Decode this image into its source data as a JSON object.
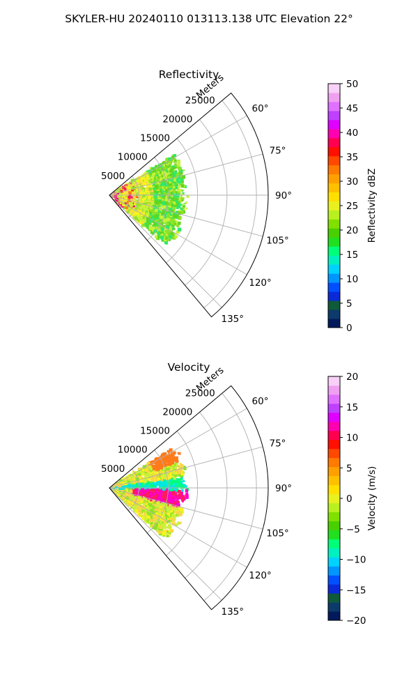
{
  "figure": {
    "suptitle": "SKYLER-HU  20240110  013113.138 UTC Elevation 22°"
  },
  "chart_data": [
    {
      "type": "heatmap",
      "projection": "polar-sector",
      "title": "Reflectivity",
      "radial_label": "Meters",
      "radial_ticks": [
        5000,
        10000,
        15000,
        20000,
        25000
      ],
      "radial_tick_labels": [
        "5000",
        "10000",
        "15000",
        "20000",
        "25000"
      ],
      "r_max": 27000,
      "azimuth_range": [
        50,
        140
      ],
      "angle_ticks": [
        60,
        75,
        90,
        105,
        120,
        135
      ],
      "angle_tick_labels": [
        "60°",
        "75°",
        "90°",
        "105°",
        "120°",
        "135°"
      ],
      "grid": true,
      "data_extent_m": 13500,
      "colorbar": {
        "label": "Reflectivity dBZ",
        "range": [
          0,
          50
        ],
        "ticks": [
          0,
          5,
          10,
          15,
          20,
          25,
          30,
          35,
          40,
          45,
          50
        ],
        "tick_labels": [
          "0",
          "5",
          "10",
          "15",
          "20",
          "25",
          "30",
          "35",
          "40",
          "45",
          "50"
        ],
        "colors": [
          "#021a5c",
          "#0c3a6a",
          "#0f5a3a",
          "#0a2ad8",
          "#0050ff",
          "#0096ff",
          "#00d2ff",
          "#00f0c0",
          "#00ff78",
          "#20e020",
          "#48d000",
          "#80e000",
          "#b8f020",
          "#e8f020",
          "#ffe000",
          "#ffc000",
          "#ffa000",
          "#ff7a00",
          "#ff4800",
          "#ff1000",
          "#ff0050",
          "#ff00b0",
          "#e000ff",
          "#c040ff",
          "#e070ff",
          "#f0a0f0",
          "#f8d0f8"
        ]
      },
      "field_colors": [
        "#ffd24a",
        "#f7f51b",
        "#c8f23a",
        "#8ee226",
        "#62d61f",
        "#2ee86a",
        "#ff1e1e",
        "#ff0a7a",
        "#ff7a1a"
      ]
    },
    {
      "type": "heatmap",
      "projection": "polar-sector",
      "title": "Velocity",
      "radial_label": "Meters",
      "radial_ticks": [
        5000,
        10000,
        15000,
        20000,
        25000
      ],
      "radial_tick_labels": [
        "5000",
        "10000",
        "15000",
        "20000",
        "25000"
      ],
      "r_max": 27000,
      "azimuth_range": [
        50,
        140
      ],
      "angle_ticks": [
        60,
        75,
        90,
        105,
        120,
        135
      ],
      "angle_tick_labels": [
        "60°",
        "75°",
        "90°",
        "105°",
        "120°",
        "135°"
      ],
      "grid": true,
      "data_extent_m": 13500,
      "colorbar": {
        "label": "Velocity (m/s)",
        "range": [
          -20,
          20
        ],
        "ticks": [
          -20,
          -15,
          -10,
          -5,
          0,
          5,
          10,
          15,
          20
        ],
        "tick_labels": [
          "−20",
          "−15",
          "−10",
          "−5",
          "0",
          "5",
          "10",
          "15",
          "20"
        ],
        "colors": [
          "#021a5c",
          "#0c3a6a",
          "#0f5a3a",
          "#0a2ad8",
          "#0050ff",
          "#0096ff",
          "#00d2ff",
          "#00f0c0",
          "#00ff78",
          "#20e020",
          "#48d000",
          "#80e000",
          "#b8f020",
          "#e8f020",
          "#ffe000",
          "#ffc000",
          "#ffa000",
          "#ff7a00",
          "#ff4800",
          "#ff1000",
          "#ff0050",
          "#ff00b0",
          "#e000ff",
          "#c040ff",
          "#e070ff",
          "#f0a0f0",
          "#f8d0f8"
        ]
      },
      "field_colors": [
        "#ffd24a",
        "#f7f51b",
        "#c8f23a",
        "#8ee226",
        "#00ff78",
        "#00e6e6",
        "#ff1e5a",
        "#ff00c8",
        "#ff7a1a"
      ]
    }
  ]
}
